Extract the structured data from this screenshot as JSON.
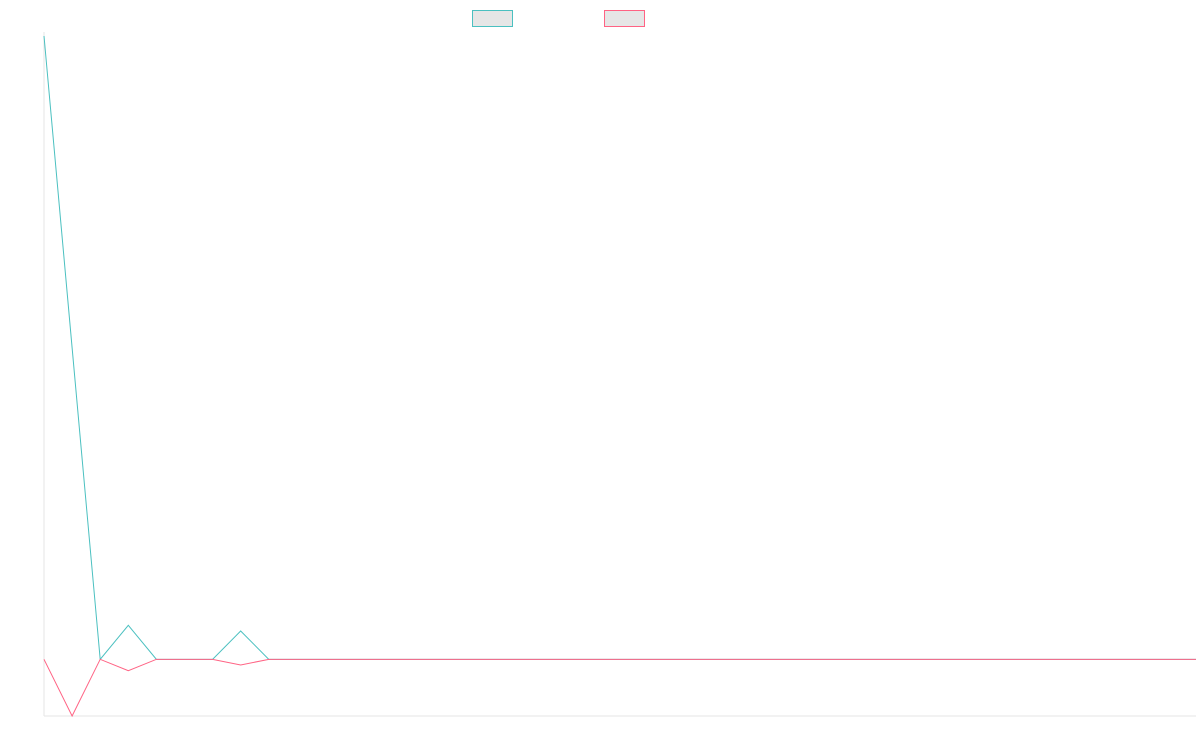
{
  "chart_data": {
    "type": "line",
    "title": "",
    "xlabel": "",
    "ylabel": "",
    "x": [
      0,
      1,
      2,
      3,
      4,
      5,
      6,
      7,
      8,
      9,
      10,
      11,
      12,
      13,
      14,
      15,
      16,
      17,
      18,
      19,
      20,
      21,
      22,
      23,
      24,
      25,
      26,
      27,
      28,
      29,
      30,
      31,
      32,
      33,
      34,
      35,
      36,
      37,
      38,
      39,
      40,
      41
    ],
    "xlim": [
      0,
      41
    ],
    "ylim": [
      -1,
      11
    ],
    "grid": false,
    "legend": {
      "placement": "top-center",
      "fill_color": "#e6e6e6"
    },
    "series": [
      {
        "color": "#4bc0c0",
        "values": [
          11,
          5.5,
          0,
          0.6,
          0,
          0,
          0,
          0.5,
          0,
          0,
          0,
          0,
          0,
          0,
          0,
          0,
          0,
          0,
          0,
          0,
          0,
          0,
          0,
          0,
          0,
          0,
          0,
          0,
          0,
          0,
          0,
          0,
          0,
          0,
          0,
          0,
          0,
          0,
          0,
          0,
          0,
          0
        ]
      },
      {
        "color": "#ff6384",
        "values": [
          0,
          -1,
          0,
          -0.2,
          0,
          0,
          0,
          -0.1,
          0,
          0,
          0,
          0,
          0,
          0,
          0,
          0,
          0,
          0,
          0,
          0,
          0,
          0,
          0,
          0,
          0,
          0,
          0,
          0,
          0,
          0,
          0,
          0,
          0,
          0,
          0,
          0,
          0,
          0,
          0,
          0,
          0,
          0
        ]
      }
    ]
  }
}
